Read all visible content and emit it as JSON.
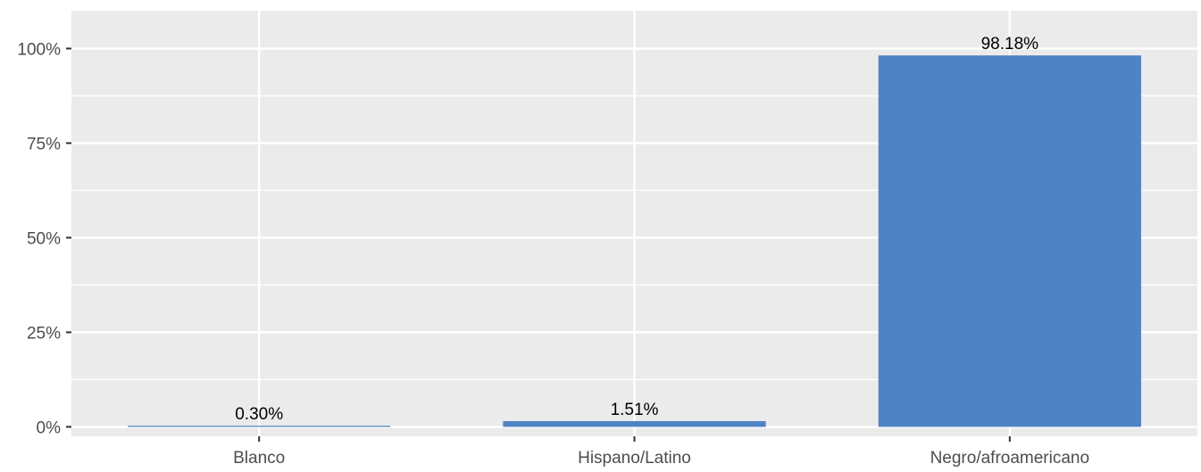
{
  "chart_data": {
    "type": "bar",
    "categories": [
      "Blanco",
      "Hispano/Latino",
      "Negro/afroamericano"
    ],
    "values": [
      0.3,
      1.51,
      98.18
    ],
    "data_labels": [
      "0.30%",
      "1.51%",
      "98.18%"
    ],
    "title": "",
    "xlabel": "",
    "ylabel": "",
    "ylim": [
      -2.5,
      110
    ],
    "yticks": [
      0,
      25,
      50,
      75,
      100
    ],
    "ytick_labels": [
      "0%",
      "25%",
      "50%",
      "75%",
      "100%"
    ],
    "grid": true,
    "legend": "none",
    "bar_color": "#4f83c4",
    "panel_color": "#ebebeb",
    "grid_color": "#ffffff"
  }
}
